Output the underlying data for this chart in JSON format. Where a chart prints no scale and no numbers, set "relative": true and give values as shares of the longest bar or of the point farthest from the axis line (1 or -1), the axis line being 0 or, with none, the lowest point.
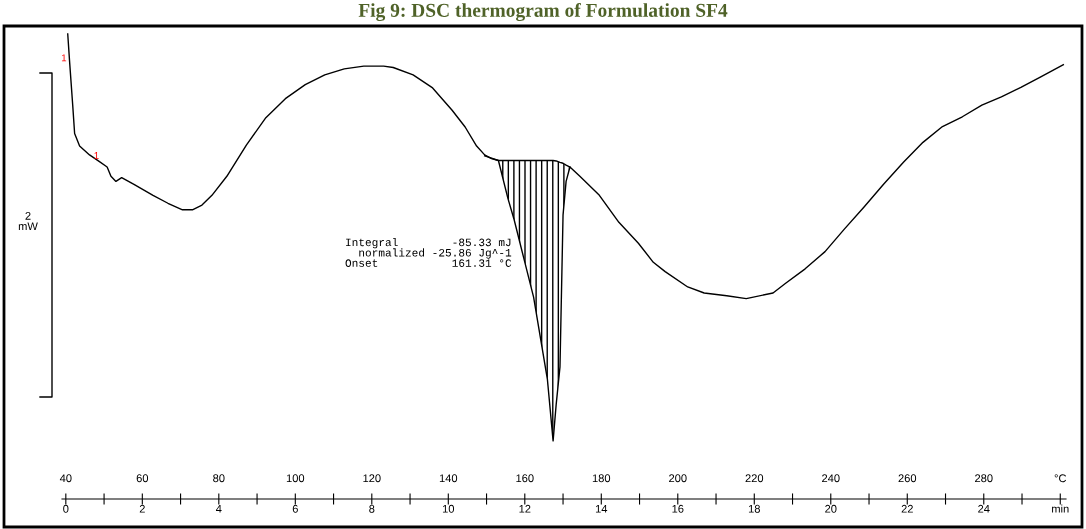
{
  "chart_data": {
    "type": "line",
    "title": "Fig 9: DSC thermogram of Formulation SF4",
    "relative": true,
    "x": [
      40.5,
      41.0,
      41.8,
      42.3,
      43.6,
      46.2,
      48.7,
      50.8,
      51.8,
      53.1,
      54.6,
      57.7,
      62.8,
      66.7,
      70.5,
      73.1,
      75.6,
      78.2,
      82.1,
      87.2,
      92.3,
      97.4,
      102.6,
      107.7,
      112.8,
      117.9,
      123.1,
      125.6,
      130.8,
      135.9,
      141.0,
      144.4,
      147.4,
      149.5,
      151.3,
      153.1,
      155.6,
      157.2,
      159.7,
      162.3,
      165.9,
      167.4,
      168.2,
      169.2,
      170.0,
      170.8,
      171.8,
      174.4,
      179.5,
      184.6,
      189.7,
      193.6,
      196.7,
      202.6,
      206.9,
      212.8,
      217.9,
      224.9,
      228.2,
      233.3,
      238.5,
      243.6,
      248.7,
      253.8,
      259.0,
      264.1,
      269.2,
      274.4,
      279.5,
      284.6,
      289.7,
      294.9,
      300.8
    ],
    "series": [
      {
        "color": "#000000",
        "values": [
          1.0,
          0.939,
          0.847,
          0.786,
          0.759,
          0.74,
          0.726,
          0.714,
          0.694,
          0.683,
          0.691,
          0.677,
          0.653,
          0.636,
          0.622,
          0.622,
          0.632,
          0.653,
          0.694,
          0.761,
          0.82,
          0.861,
          0.891,
          0.912,
          0.925,
          0.931,
          0.931,
          0.928,
          0.912,
          0.884,
          0.836,
          0.8,
          0.759,
          0.74,
          0.732,
          0.728,
          0.646,
          0.601,
          0.519,
          0.434,
          0.258,
          0.125,
          0.203,
          0.284,
          0.611,
          0.683,
          0.714,
          0.694,
          0.653,
          0.595,
          0.55,
          0.509,
          0.489,
          0.456,
          0.443,
          0.437,
          0.431,
          0.443,
          0.464,
          0.495,
          0.532,
          0.581,
          0.628,
          0.677,
          0.724,
          0.767,
          0.801,
          0.822,
          0.847,
          0.865,
          0.885,
          0.908,
          0.934
        ]
      },
      {
        "color": "#000000",
        "x": [
          149.5,
          151.3,
          153.1,
          155.6,
          157.2,
          159.7,
          162.3,
          165.9,
          167.4,
          168.2,
          169.2,
          170.0,
          170.8,
          171.8
        ],
        "values": [
          0.738,
          0.733,
          0.728,
          0.728,
          0.728,
          0.728,
          0.728,
          0.728,
          0.728,
          0.727,
          0.724,
          0.722,
          0.718,
          0.714
        ],
        "upper": [
          0.738,
          0.733,
          0.728,
          0.728,
          0.728,
          0.728,
          0.728,
          0.728,
          0.728,
          0.727,
          0.724,
          0.722,
          0.718,
          0.714
        ],
        "lower": [
          0.74,
          0.732,
          0.728,
          0.646,
          0.601,
          0.519,
          0.434,
          0.258,
          0.125,
          0.203,
          0.284,
          0.611,
          0.683,
          0.714
        ]
      }
    ],
    "xlim": [
      39,
      301.5
    ],
    "xticks": [
      40,
      {
        "value": 50,
        "label": null
      },
      60,
      {
        "value": 70,
        "label": null
      },
      80,
      {
        "value": 90,
        "label": null
      },
      100,
      {
        "value": 110,
        "label": null
      },
      120,
      {
        "value": 130,
        "label": null
      },
      140,
      {
        "value": 150,
        "label": null
      },
      160,
      {
        "value": 170,
        "label": null
      },
      180,
      {
        "value": 190,
        "label": null
      },
      200,
      {
        "value": 210,
        "label": null
      },
      220,
      {
        "value": 230,
        "label": null
      },
      240,
      {
        "value": 250,
        "label": null
      },
      260,
      {
        "value": 270,
        "label": null
      },
      280,
      {
        "value": 290,
        "label": null
      },
      {
        "value": 300,
        "label": "°C"
      }
    ],
    "x2lim": [
      -0.1,
      26.15
    ],
    "x2ticks": [
      0,
      2,
      4,
      6,
      8,
      10,
      12,
      14,
      16,
      18,
      20,
      22,
      24,
      {
        "value": 26,
        "label": "min"
      }
    ],
    "annotations": [
      "2\nmW",
      "Integral        -85.33 mJ\n  normalized -25.86 Jg^-1\nOnset           161.31 °C",
      {
        "text": "1",
        "x": 39.5,
        "y": 0.947
      },
      {
        "text": "1",
        "x": 48.0,
        "y": 0.737
      }
    ],
    "grid": false,
    "line_style": "solid",
    "marker": "none"
  }
}
